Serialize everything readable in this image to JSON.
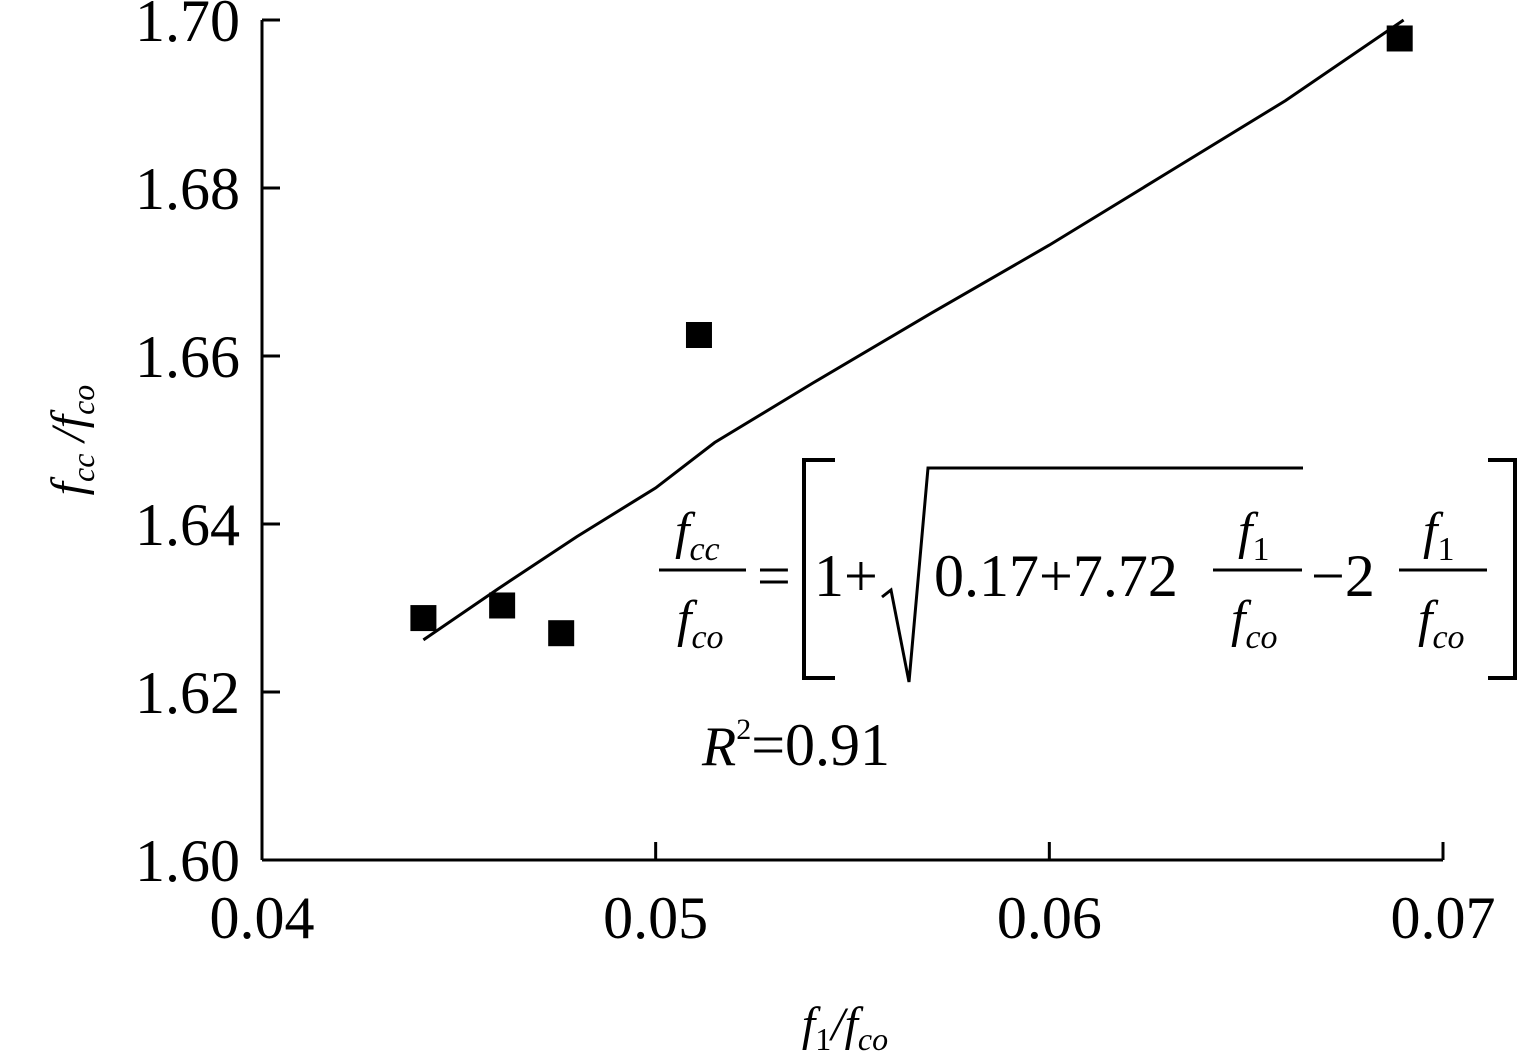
{
  "chart_data": {
    "type": "scatter",
    "title": "",
    "xlabel": "f1/fco",
    "ylabel": "fcc /fco",
    "xlim": [
      0.04,
      0.07
    ],
    "ylim": [
      1.6,
      1.7
    ],
    "xticks": [
      "0.04",
      "0.05",
      "0.06",
      "0.07"
    ],
    "yticks": [
      "1.60",
      "1.62",
      "1.64",
      "1.66",
      "1.68",
      "1.70"
    ],
    "grid": false,
    "legend": "none",
    "series": [
      {
        "kind": "points",
        "marker": "square",
        "color": "#000000",
        "x": [
          0.0441,
          0.0461,
          0.0476,
          0.0511,
          0.0689
        ],
        "y": [
          1.6288,
          1.6303,
          1.627,
          1.6625,
          1.6978
        ]
      },
      {
        "kind": "fit-line",
        "color": "#000000",
        "x": [
          0.0441,
          0.046,
          0.048,
          0.05,
          0.0515,
          0.054,
          0.057,
          0.06,
          0.063,
          0.066,
          0.069
        ],
        "y": [
          1.6262,
          1.6323,
          1.6385,
          1.6443,
          1.6497,
          1.6568,
          1.6651,
          1.6732,
          1.6818,
          1.6904,
          1.7
        ]
      }
    ],
    "annotations": {
      "equation": {
        "lhs_num": "f",
        "lhs_num_sub": "cc",
        "lhs_den": "f",
        "lhs_den_sub": "co",
        "equals": "=",
        "one_plus": "1+",
        "radicand": "0.17+7.72",
        "frac1_num": "f",
        "frac1_num_sub": "1",
        "frac1_den": "f",
        "frac1_den_sub": "co",
        "minus_two": "−2",
        "frac2_num": "f",
        "frac2_num_sub": "1",
        "frac2_den": "f",
        "frac2_den_sub": "co"
      },
      "r_squared": {
        "symbol": "R",
        "power": "2",
        "value": "=0.91"
      }
    }
  }
}
